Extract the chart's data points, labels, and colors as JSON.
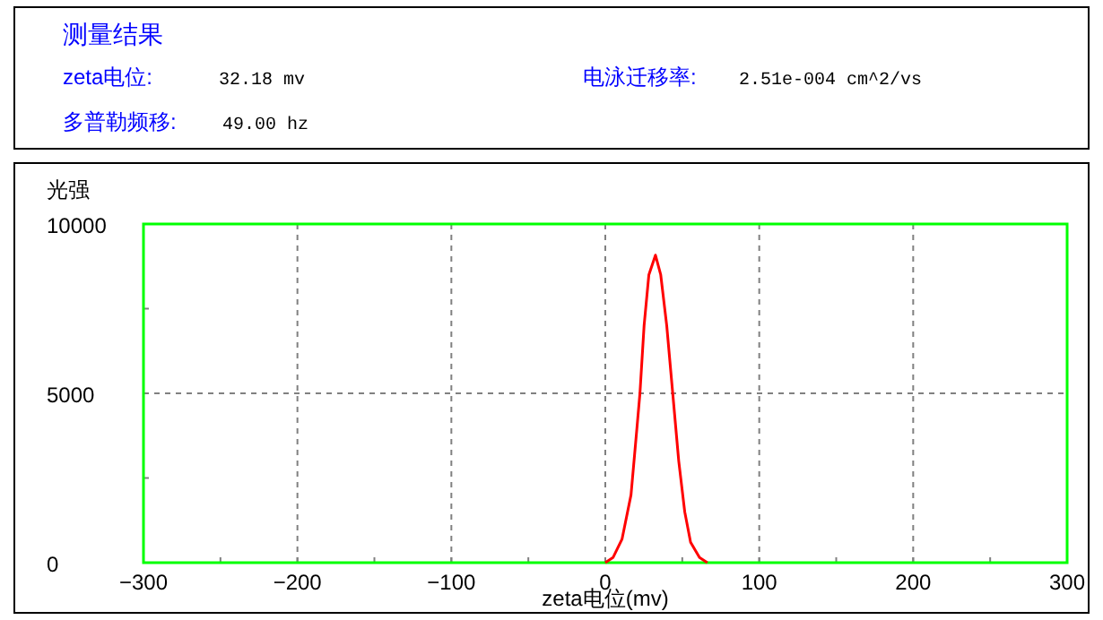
{
  "chart_data": {
    "type": "line",
    "title": "测量结果",
    "annotations": [
      "zeta电位:",
      "32.18 mv",
      "电泳迁移率:",
      "2.51e-004 cm^2/vs",
      "多普勒频移:",
      "49.00 hz"
    ],
    "xlabel": "zeta电位(mv)",
    "ylabel": "光强",
    "xlim": [
      -300,
      300
    ],
    "xticks": [
      -300,
      {
        "value": -250,
        "label": null
      },
      -200,
      {
        "value": -150,
        "label": null
      },
      -100,
      {
        "value": -50,
        "label": null
      },
      0,
      {
        "value": 50,
        "label": null
      },
      100,
      {
        "value": 150,
        "label": null
      },
      200,
      {
        "value": 250,
        "label": null
      },
      300
    ],
    "ylim": [
      0,
      10000
    ],
    "yticks": [
      0,
      {
        "value": 2500,
        "label": null
      },
      5000,
      {
        "value": 7500,
        "label": null
      },
      10000
    ],
    "grid": true,
    "marker": "none",
    "line_style": "solid",
    "series": [
      {
        "color": "#ff0000",
        "x": [
          0,
          5,
          10.9,
          16.7,
          20.5,
          22.5,
          25.2,
          28.3,
          32.6,
          36,
          39.9,
          43.8,
          47.7,
          51.6,
          55.4,
          61.2,
          66.3
        ],
        "values": [
          0,
          150,
          700,
          2000,
          3950,
          5000,
          7000,
          8500,
          9080,
          8500,
          7000,
          5000,
          3000,
          1500,
          600,
          150,
          0
        ]
      }
    ]
  }
}
